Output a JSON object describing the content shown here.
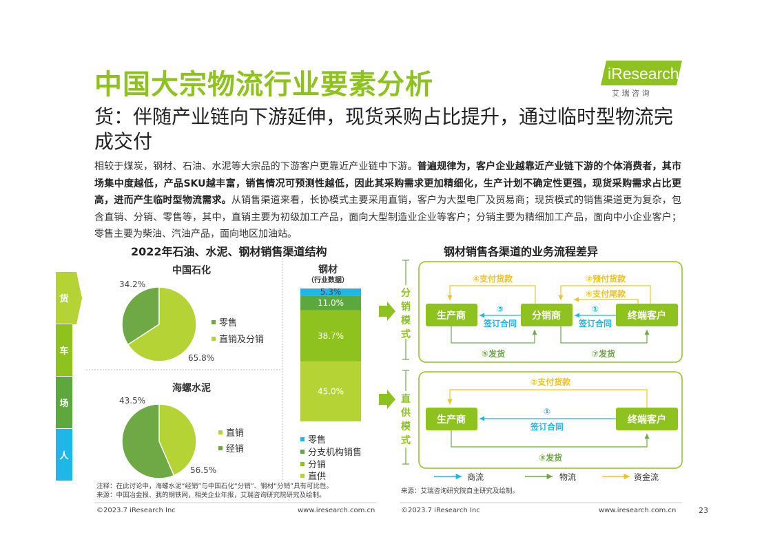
{
  "header": {
    "title": "中国大宗物流行业要素分析",
    "subtitle": "货：伴随产业链向下游延伸，现货采购占比提升，通过临时型物流完成交付",
    "logo_text": "iResearch",
    "logo_sub": "艾 瑞 咨 询"
  },
  "body": {
    "p1": "相较于煤炭，钢材、石油、水泥等大宗品的下游客户更靠近产业链中下游。",
    "p2_bold": "普遍规律为，客户企业越靠近产业链下游的个体消费者，其市场集中度越低，产品SKU越丰富，销售情况可预测性越低，因此其采购需求更加精细化，生产计划不确定性更强，现货采购需求占比更高，进而产生临时型物流需求。",
    "p3": "从销售渠道来看，长协模式主要采用直销，客户为大型电厂及贸易商；现货模式的销售渠道更为复杂，包含直销、分销、零售等，其中，直销主要为初级加工产品，面向大型制造业企业等客户；分销主要为精细加工产品，面向中小企业客户；零售主要为柴油、汽油产品，面向地区加油站。"
  },
  "side_nav": {
    "items": [
      "货",
      "车",
      "场",
      "人"
    ]
  },
  "colors": {
    "green": "#8dc21f",
    "light_green": "#b5d334",
    "dark_green": "#6ea945",
    "cyan": "#1fb6e8",
    "yellow": "#f5c21c",
    "gray_green": "#a5c56a"
  },
  "chart_data": [
    {
      "type": "pie",
      "title": "2022年石油、水泥、钢材销售渠道结构",
      "subtitle": "中国石化",
      "categories": [
        "零售",
        "直销及分销"
      ],
      "values": [
        34.2,
        65.8
      ],
      "labels": [
        "34.2%",
        "65.8%"
      ]
    },
    {
      "type": "pie",
      "subtitle": "海螺水泥",
      "categories": [
        "直销",
        "经销"
      ],
      "values": [
        43.5,
        56.5
      ],
      "labels": [
        "43.5%",
        "56.5%"
      ]
    },
    {
      "type": "bar",
      "subtitle": "钢材",
      "subtitle2": "（行业数据）",
      "stacked": true,
      "categories": [
        "钢材"
      ],
      "series": [
        {
          "name": "零售",
          "values": [
            5.3
          ],
          "label": "5.3%"
        },
        {
          "name": "分支机构销售",
          "values": [
            11.0
          ],
          "label": "11.0%"
        },
        {
          "name": "分销",
          "values": [
            38.7
          ],
          "label": "38.7%"
        },
        {
          "name": "直供",
          "values": [
            45.0
          ],
          "label": "45.0%"
        }
      ],
      "ylim": [
        0,
        100
      ]
    }
  ],
  "flow": {
    "title": "钢材销售各渠道的业务流程差异",
    "dist": {
      "mode": "分销模式",
      "nodes": [
        "生产商",
        "分销商",
        "终端客户"
      ],
      "pay1": "④支付货款",
      "pay2": "②预付货款",
      "pay3": "⑥支付尾款",
      "sign1_num": "③",
      "sign1": "签订合同",
      "sign2_num": "①",
      "sign2": "签订合同",
      "ship1": "⑤发货",
      "ship2": "⑦发货"
    },
    "direct": {
      "mode": "直供模式",
      "nodes": [
        "生产商",
        "终端客户"
      ],
      "pay": "②支付货款",
      "sign_num": "①",
      "sign": "签订合同",
      "ship": "③发货"
    },
    "legend": [
      "商流",
      "物流",
      "资金流"
    ]
  },
  "notes": {
    "left1": "注释：在此讨论中，海螺水泥“经销”与中国石化“分销”、钢材“分销”具有可比性。",
    "left2": "来源：中国冶金报、我的钢铁网，相关企业年报，艾瑞咨询研究院研究及绘制。",
    "right": "来源：艾瑞咨询研究院自主研究及绘制。"
  },
  "footer": {
    "copy_left": "©2023.7 iResearch Inc",
    "url_left": "www.iresearch.com.cn",
    "copy_right": "©2023.7 iResearch Inc",
    "url_right": "www.iresearch.com.cn",
    "page": "23"
  }
}
